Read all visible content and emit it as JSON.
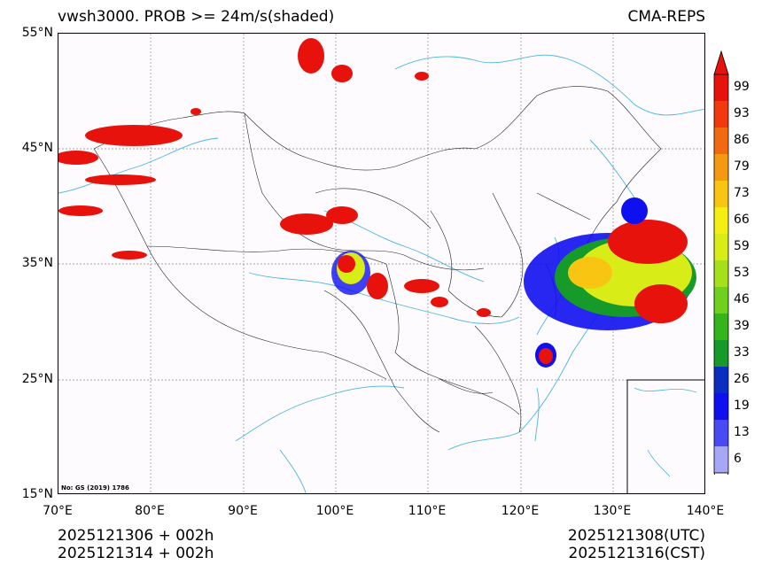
{
  "title": {
    "left": "vwsh3000. PROB >= 24m/s(shaded)",
    "right": "CMA-REPS"
  },
  "axes": {
    "lat_labels": [
      "55°N",
      "45°N",
      "35°N",
      "25°N",
      "15°N"
    ],
    "lon_labels": [
      "70°E",
      "80°E",
      "90°E",
      "100°E",
      "110°E",
      "120°E",
      "130°E",
      "140°E"
    ]
  },
  "watermark": "No: GS (2019) 1786",
  "footer": {
    "init_utc": "2025121306  +  002h",
    "init_cst": "2025121314  +  002h",
    "valid_utc": "2025121308(UTC)",
    "valid_cst": "2025121316(CST)"
  },
  "colorbar": {
    "labels": [
      "99",
      "93",
      "86",
      "79",
      "73",
      "66",
      "59",
      "53",
      "46",
      "39",
      "33",
      "26",
      "19",
      "13",
      "6"
    ],
    "colors": [
      "#e8120c",
      "#f2380f",
      "#f26a10",
      "#f59a10",
      "#f7c512",
      "#f5ee12",
      "#d8ec17",
      "#a6e01c",
      "#6fd01e",
      "#35b41c",
      "#169a2a",
      "#0a2fc0",
      "#0f10f0",
      "#4a4af5",
      "#a6a8f7"
    ]
  }
}
